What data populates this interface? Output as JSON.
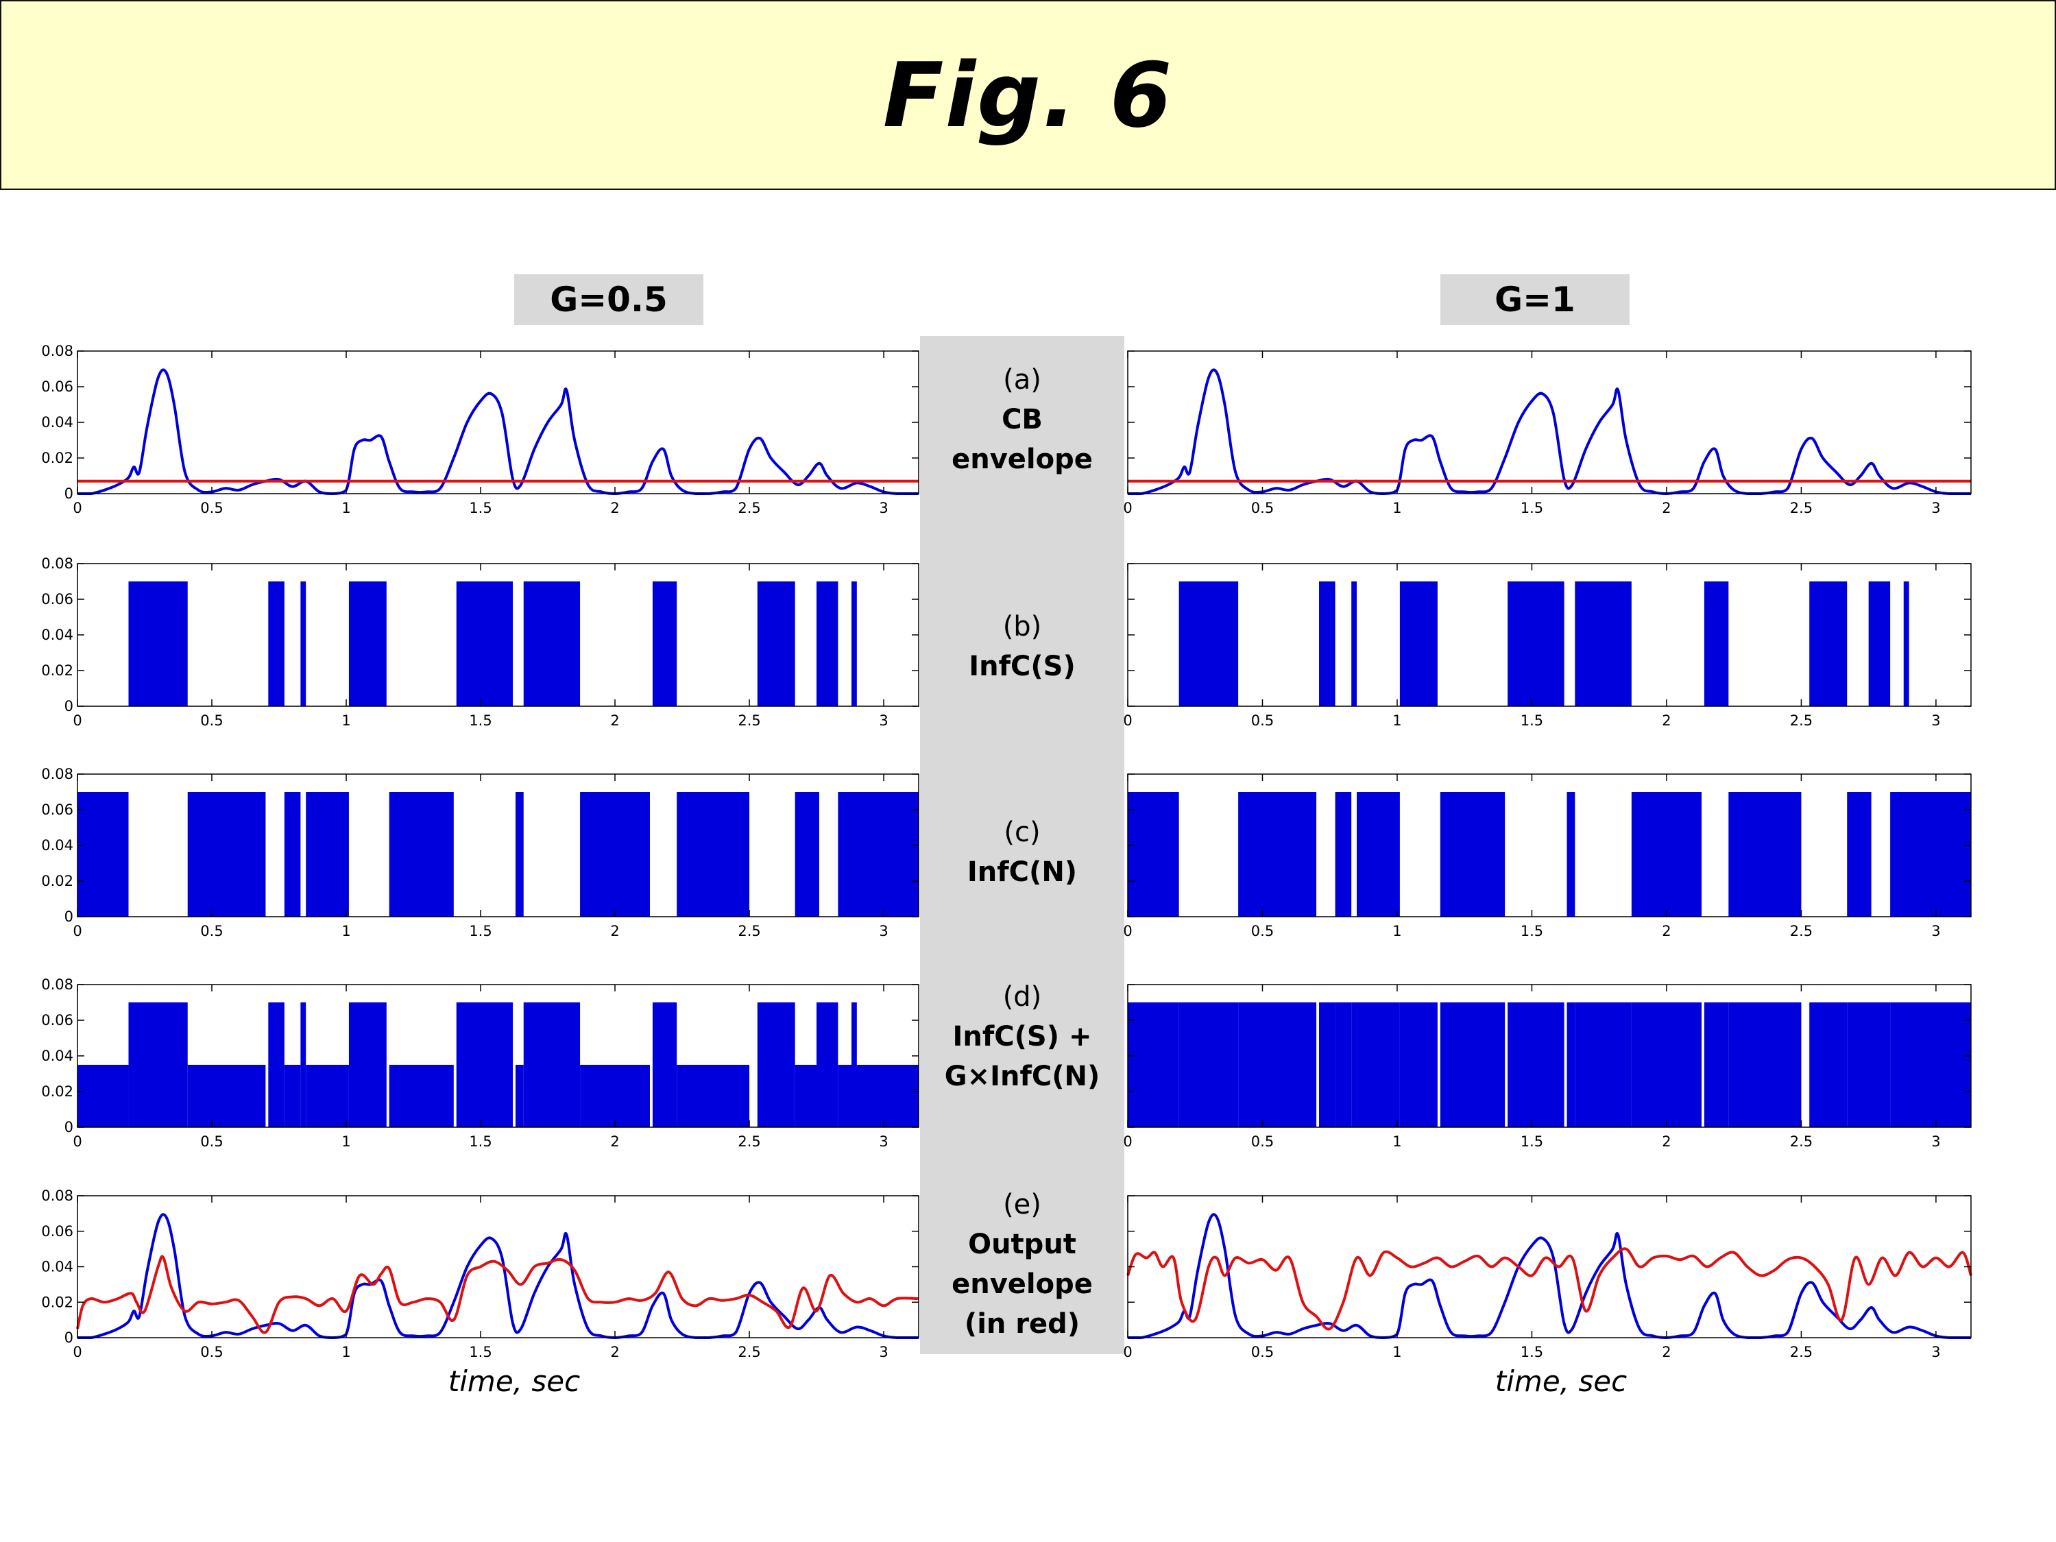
{
  "title": "Fig. 6",
  "columns": [
    {
      "label": "G=0.5"
    },
    {
      "label": "G=1"
    }
  ],
  "rows": [
    {
      "letter": "(a)",
      "name": "CB\nenvelope"
    },
    {
      "letter": "(b)",
      "name": "InfC(S)"
    },
    {
      "letter": "(c)",
      "name": "InfC(N)"
    },
    {
      "letter": "(d)",
      "name": "InfC(S) +\nG×InfC(N)"
    },
    {
      "letter": "(e)",
      "name": "Output\nenvelope\n(in red)"
    }
  ],
  "xlabel": "time, sec",
  "colors": {
    "blue": "#0000dd",
    "red": "#dd1111",
    "banner": "#ffffcc",
    "panel": "#d9d9d9"
  },
  "chart_data": {
    "type": "line",
    "xlim": [
      0,
      3.13
    ],
    "ylim": [
      0,
      0.08
    ],
    "xticks": [
      0,
      0.5,
      1,
      1.5,
      2,
      2.5,
      3
    ],
    "xtick_labels": [
      "0",
      "0.5",
      "1",
      "1.5",
      "2",
      "2.5",
      "3"
    ],
    "yticks": [
      0,
      0.02,
      0.04,
      0.06,
      0.08
    ],
    "ytick_labels": [
      "0",
      "0.02",
      "0.04",
      "0.06",
      "0.08"
    ],
    "threshold": 0.007,
    "envelope": {
      "name": "CB envelope",
      "x": [
        0,
        0.05,
        0.1,
        0.15,
        0.19,
        0.21,
        0.23,
        0.26,
        0.3,
        0.33,
        0.36,
        0.4,
        0.45,
        0.5,
        0.55,
        0.6,
        0.65,
        0.7,
        0.75,
        0.8,
        0.85,
        0.9,
        0.95,
        1.0,
        1.03,
        1.06,
        1.09,
        1.13,
        1.16,
        1.2,
        1.25,
        1.3,
        1.35,
        1.4,
        1.45,
        1.5,
        1.54,
        1.58,
        1.62,
        1.65,
        1.7,
        1.75,
        1.8,
        1.82,
        1.85,
        1.9,
        1.95,
        2.0,
        2.05,
        2.1,
        2.14,
        2.18,
        2.21,
        2.25,
        2.3,
        2.35,
        2.4,
        2.45,
        2.5,
        2.54,
        2.58,
        2.63,
        2.68,
        2.72,
        2.76,
        2.79,
        2.84,
        2.9,
        2.95,
        3.0,
        3.05,
        3.13
      ],
      "values": [
        0,
        0,
        0.002,
        0.005,
        0.009,
        0.015,
        0.012,
        0.038,
        0.065,
        0.068,
        0.05,
        0.012,
        0.002,
        0.001,
        0.003,
        0.002,
        0.005,
        0.007,
        0.008,
        0.004,
        0.007,
        0.001,
        0,
        0.002,
        0.025,
        0.03,
        0.03,
        0.032,
        0.018,
        0.003,
        0.001,
        0.001,
        0.003,
        0.02,
        0.04,
        0.052,
        0.056,
        0.045,
        0.008,
        0.005,
        0.025,
        0.04,
        0.05,
        0.058,
        0.03,
        0.005,
        0.001,
        0,
        0.001,
        0.003,
        0.018,
        0.025,
        0.01,
        0.002,
        0,
        0,
        0.001,
        0.003,
        0.025,
        0.031,
        0.02,
        0.012,
        0.005,
        0.01,
        0.017,
        0.01,
        0.003,
        0.006,
        0.004,
        0.001,
        0,
        0
      ]
    },
    "output_g05": {
      "name": "Output envelope G=0.5",
      "x": [
        0,
        0.02,
        0.05,
        0.1,
        0.15,
        0.2,
        0.22,
        0.25,
        0.3,
        0.32,
        0.35,
        0.4,
        0.45,
        0.5,
        0.55,
        0.6,
        0.65,
        0.7,
        0.75,
        0.8,
        0.85,
        0.9,
        0.95,
        1.0,
        1.05,
        1.1,
        1.13,
        1.16,
        1.2,
        1.25,
        1.3,
        1.35,
        1.4,
        1.45,
        1.5,
        1.55,
        1.6,
        1.65,
        1.7,
        1.75,
        1.8,
        1.85,
        1.9,
        1.95,
        2.0,
        2.05,
        2.1,
        2.15,
        2.2,
        2.25,
        2.3,
        2.35,
        2.4,
        2.45,
        2.5,
        2.55,
        2.6,
        2.65,
        2.7,
        2.75,
        2.8,
        2.85,
        2.9,
        2.95,
        3.0,
        3.05,
        3.13
      ],
      "values": [
        0.005,
        0.018,
        0.022,
        0.02,
        0.022,
        0.025,
        0.02,
        0.015,
        0.04,
        0.045,
        0.028,
        0.015,
        0.02,
        0.019,
        0.02,
        0.021,
        0.012,
        0.003,
        0.02,
        0.023,
        0.022,
        0.018,
        0.022,
        0.015,
        0.035,
        0.03,
        0.036,
        0.039,
        0.02,
        0.02,
        0.022,
        0.02,
        0.01,
        0.035,
        0.04,
        0.043,
        0.038,
        0.03,
        0.04,
        0.042,
        0.044,
        0.038,
        0.022,
        0.02,
        0.02,
        0.022,
        0.021,
        0.025,
        0.037,
        0.022,
        0.018,
        0.022,
        0.021,
        0.022,
        0.024,
        0.02,
        0.015,
        0.006,
        0.028,
        0.015,
        0.035,
        0.025,
        0.02,
        0.022,
        0.018,
        0.022,
        0.022
      ]
    },
    "output_g1": {
      "name": "Output envelope G=1",
      "x": [
        0,
        0.03,
        0.07,
        0.1,
        0.13,
        0.17,
        0.2,
        0.25,
        0.3,
        0.33,
        0.36,
        0.4,
        0.45,
        0.5,
        0.55,
        0.6,
        0.65,
        0.7,
        0.75,
        0.8,
        0.85,
        0.9,
        0.95,
        1.0,
        1.05,
        1.1,
        1.15,
        1.2,
        1.25,
        1.3,
        1.35,
        1.4,
        1.45,
        1.5,
        1.55,
        1.6,
        1.65,
        1.7,
        1.75,
        1.8,
        1.85,
        1.9,
        1.95,
        2.0,
        2.05,
        2.1,
        2.15,
        2.2,
        2.25,
        2.3,
        2.35,
        2.4,
        2.45,
        2.5,
        2.55,
        2.6,
        2.65,
        2.7,
        2.75,
        2.8,
        2.85,
        2.9,
        2.95,
        3.0,
        3.05,
        3.1,
        3.13
      ],
      "values": [
        0.035,
        0.047,
        0.045,
        0.048,
        0.04,
        0.045,
        0.02,
        0.01,
        0.04,
        0.045,
        0.035,
        0.045,
        0.042,
        0.044,
        0.038,
        0.045,
        0.02,
        0.012,
        0.005,
        0.02,
        0.045,
        0.035,
        0.048,
        0.045,
        0.04,
        0.042,
        0.045,
        0.04,
        0.043,
        0.046,
        0.04,
        0.045,
        0.04,
        0.035,
        0.045,
        0.04,
        0.045,
        0.015,
        0.035,
        0.045,
        0.05,
        0.04,
        0.045,
        0.046,
        0.044,
        0.046,
        0.04,
        0.045,
        0.048,
        0.04,
        0.035,
        0.038,
        0.044,
        0.045,
        0.04,
        0.03,
        0.01,
        0.045,
        0.03,
        0.045,
        0.035,
        0.048,
        0.04,
        0.045,
        0.04,
        0.048,
        0.035
      ]
    },
    "infc_s": {
      "name": "InfC(S)",
      "level": 0.07,
      "segments": [
        [
          0.19,
          0.41
        ],
        [
          0.71,
          0.77
        ],
        [
          0.83,
          0.85
        ],
        [
          1.01,
          1.15
        ],
        [
          1.41,
          1.62
        ],
        [
          1.66,
          1.87
        ],
        [
          2.14,
          2.23
        ],
        [
          2.53,
          2.67
        ],
        [
          2.75,
          2.83
        ],
        [
          2.88,
          2.9
        ]
      ]
    },
    "infc_n": {
      "name": "InfC(N)",
      "level": 0.07,
      "segments": [
        [
          0,
          0.19
        ],
        [
          0.41,
          0.7
        ],
        [
          0.77,
          0.83
        ],
        [
          0.85,
          1.01
        ],
        [
          1.16,
          1.4
        ],
        [
          1.63,
          1.66
        ],
        [
          1.87,
          2.13
        ],
        [
          2.23,
          2.5
        ],
        [
          2.67,
          2.76
        ],
        [
          2.83,
          3.13
        ]
      ]
    }
  }
}
